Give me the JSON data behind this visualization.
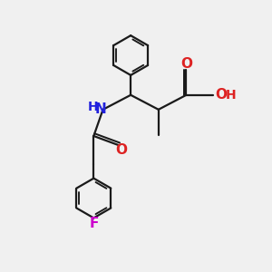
{
  "background_color": "#f0f0f0",
  "bond_color": "#1a1a1a",
  "N_color": "#2222dd",
  "O_color": "#dd2222",
  "F_color": "#cc00cc",
  "lw": 1.6,
  "figsize": [
    3.0,
    3.0
  ],
  "dpi": 100,
  "xlim": [
    0,
    10
  ],
  "ylim": [
    0,
    10
  ]
}
